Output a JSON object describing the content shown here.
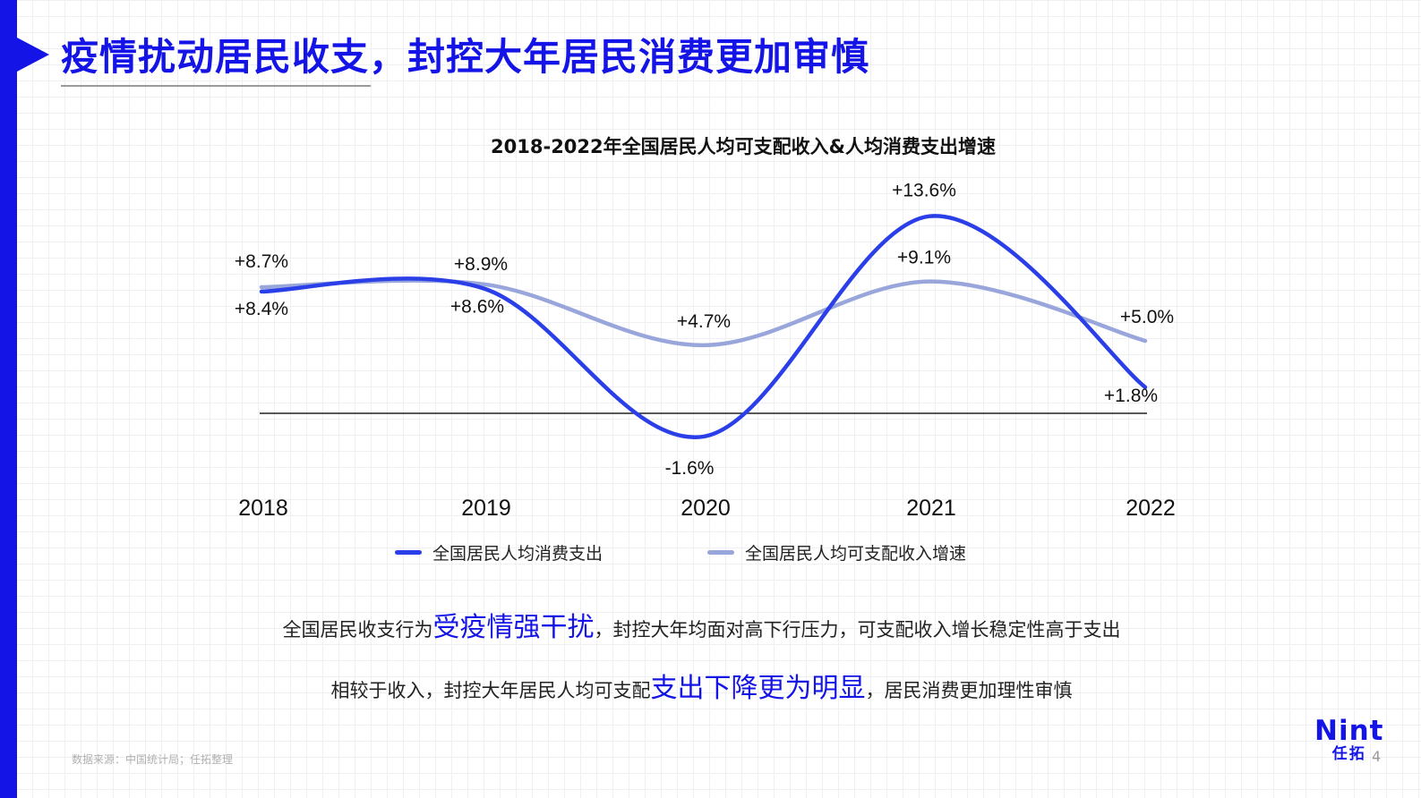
{
  "page": {
    "title": "疫情扰动居民收支，封控大年居民消费更加审慎",
    "page_number": "4",
    "source": "数据来源：中国统计局；任拓整理"
  },
  "summary": {
    "line1": {
      "pre": "全国居民收支行为",
      "highlight": "受疫情强干扰",
      "post": "，封控大年均面对高下行压力，可支配收入增长稳定性高于支出"
    },
    "line2": {
      "pre": "相较于收入，封控大年居民人均可支配",
      "highlight": "支出下降更为明显",
      "post": "，居民消费更加理性审慎"
    }
  },
  "logo": {
    "word": "Nint",
    "sub": "任拓"
  },
  "colors": {
    "accent": "#1414e6",
    "series_spending": "#2b3fe8",
    "series_income": "#98a6db"
  },
  "chart_data": {
    "type": "line",
    "title": "2018-2022年全国居民人均可支配收入&人均消费支出增速",
    "xlabel": "",
    "ylabel": "",
    "categories": [
      "2018",
      "2019",
      "2020",
      "2021",
      "2022"
    ],
    "series": [
      {
        "name": "全国居民人均消费支出",
        "values": [
          8.4,
          8.6,
          -1.6,
          13.6,
          1.8
        ],
        "labels": [
          "+8.4%",
          "+8.6%",
          "-1.6%",
          "+13.6%",
          "+1.8%"
        ],
        "color": "#2b3fe8"
      },
      {
        "name": "全国居民人均可支配收入增速",
        "values": [
          8.7,
          8.9,
          4.7,
          9.1,
          5.0
        ],
        "labels": [
          "+8.7%",
          "+8.9%",
          "+4.7%",
          "+9.1%",
          "+5.0%"
        ],
        "color": "#98a6db"
      }
    ],
    "smooth": true,
    "grid": false,
    "legend_position": "bottom",
    "baseline": 0
  }
}
